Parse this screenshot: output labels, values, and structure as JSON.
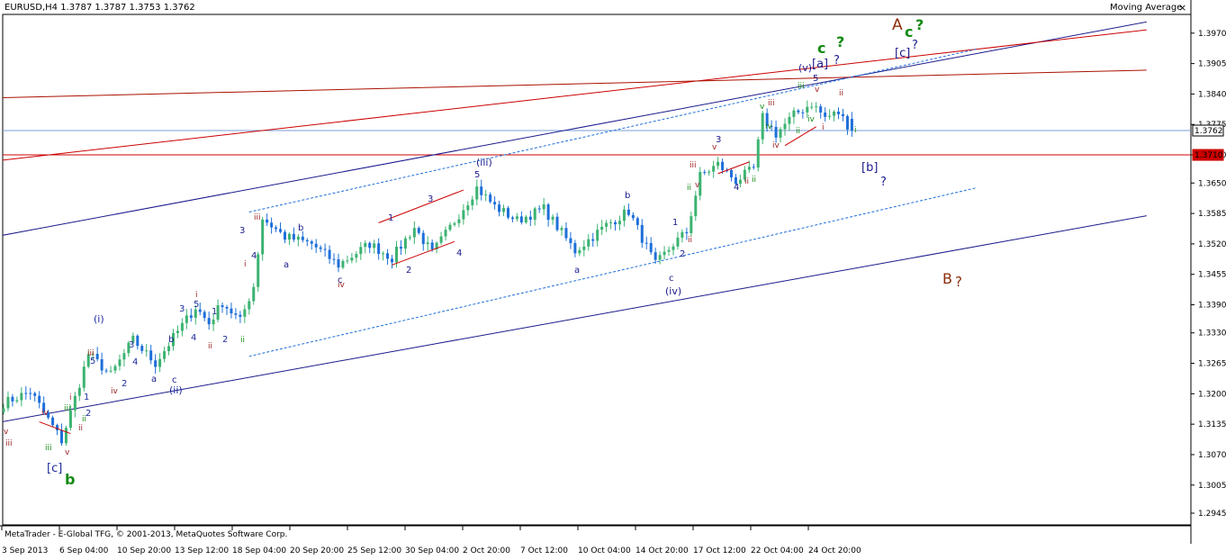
{
  "header": {
    "symbol_line": "EURUSD,H4  1.3787 1.3787 1.3753 1.3762",
    "indicator": "Moving Average",
    "close_glyph": "×"
  },
  "footer": {
    "copyright": "MetaTrader - E-Global TFG, © 2001-2013, MetaQuotes Software Corp."
  },
  "colors": {
    "bull": "#3cb371",
    "bear": "#1e6fd9",
    "navy": "#1a1a8c",
    "red": "#cc0000",
    "brown": "#8b2c0a",
    "dark_red": "#9b1b1b",
    "green": "#138a13",
    "blue_label": "#1f2d9c",
    "price_line": "#7a9cd9"
  },
  "chart_data": {
    "type": "candlestick",
    "symbol": "EURUSD",
    "timeframe": "H4",
    "last_ohlc": {
      "open": 1.3787,
      "high": 1.3787,
      "low": 1.3753,
      "close": 1.3762
    },
    "ylim": [
      1.292,
      1.401
    ],
    "y_ticks": [
      "1.3970",
      "1.3905",
      "1.3840",
      "1.3775",
      "1.3710",
      "1.3650",
      "1.3585",
      "1.3520",
      "1.3455",
      "1.3390",
      "1.3330",
      "1.3265",
      "1.3200",
      "1.3135",
      "1.3070",
      "1.3005",
      "1.2945"
    ],
    "x_ticks": [
      "3 Sep 2013",
      "6 Sep 04:00",
      "10 Sep 20:00",
      "13 Sep 12:00",
      "18 Sep 04:00",
      "20 Sep 20:00",
      "25 Sep 12:00",
      "30 Sep 04:00",
      "2 Oct 20:00",
      "7 Oct 12:00",
      "10 Oct 04:00",
      "14 Oct 20:00",
      "17 Oct 12:00",
      "22 Oct 04:00",
      "24 Oct 20:00"
    ],
    "bars": 191,
    "key_points": [
      {
        "bar": 0,
        "price": 1.318
      },
      {
        "bar": 6,
        "price": 1.3205
      },
      {
        "bar": 13,
        "price": 1.31
      },
      {
        "bar": 15,
        "price": 1.316
      },
      {
        "bar": 19,
        "price": 1.3285
      },
      {
        "bar": 24,
        "price": 1.324
      },
      {
        "bar": 29,
        "price": 1.3315
      },
      {
        "bar": 34,
        "price": 1.3265
      },
      {
        "bar": 38,
        "price": 1.332
      },
      {
        "bar": 43,
        "price": 1.3385
      },
      {
        "bar": 46,
        "price": 1.335
      },
      {
        "bar": 49,
        "price": 1.3395
      },
      {
        "bar": 53,
        "price": 1.3355
      },
      {
        "bar": 56,
        "price": 1.343
      },
      {
        "bar": 58,
        "price": 1.3575
      },
      {
        "bar": 63,
        "price": 1.3535
      },
      {
        "bar": 69,
        "price": 1.352
      },
      {
        "bar": 75,
        "price": 1.3475
      },
      {
        "bar": 82,
        "price": 1.352
      },
      {
        "bar": 87,
        "price": 1.349
      },
      {
        "bar": 92,
        "price": 1.3555
      },
      {
        "bar": 96,
        "price": 1.35
      },
      {
        "bar": 100,
        "price": 1.3555
      },
      {
        "bar": 106,
        "price": 1.364
      },
      {
        "bar": 110,
        "price": 1.36
      },
      {
        "bar": 115,
        "price": 1.357
      },
      {
        "bar": 121,
        "price": 1.3595
      },
      {
        "bar": 128,
        "price": 1.3505
      },
      {
        "bar": 135,
        "price": 1.356
      },
      {
        "bar": 140,
        "price": 1.359
      },
      {
        "bar": 146,
        "price": 1.3475
      },
      {
        "bar": 150,
        "price": 1.352
      },
      {
        "bar": 153,
        "price": 1.3545
      },
      {
        "bar": 156,
        "price": 1.3665
      },
      {
        "bar": 160,
        "price": 1.369
      },
      {
        "bar": 164,
        "price": 1.3655
      },
      {
        "bar": 168,
        "price": 1.368
      },
      {
        "bar": 170,
        "price": 1.379
      },
      {
        "bar": 173,
        "price": 1.3755
      },
      {
        "bar": 177,
        "price": 1.3795
      },
      {
        "bar": 181,
        "price": 1.382
      },
      {
        "bar": 184,
        "price": 1.379
      },
      {
        "bar": 187,
        "price": 1.38
      },
      {
        "bar": 190,
        "price": 1.3762
      }
    ],
    "horizontal_lines": [
      {
        "price": 1.3762,
        "color": "#7a9cd9",
        "label": "1.3762"
      },
      {
        "price": 1.371,
        "color": "#cc0000",
        "label": "1.3710"
      }
    ],
    "trend_lines": [
      {
        "color": "#1a1a8c",
        "style": "solid",
        "from": {
          "bar": -1,
          "price": 1.3537
        },
        "to": {
          "bar": 256,
          "price": 1.3994
        }
      },
      {
        "color": "#1a1a8c",
        "style": "solid",
        "from": {
          "bar": -1,
          "price": 1.3139
        },
        "to": {
          "bar": 256,
          "price": 1.358
        }
      },
      {
        "color": "#cc0000",
        "style": "solid",
        "from": {
          "bar": -1,
          "price": 1.3698
        },
        "to": {
          "bar": 256,
          "price": 1.3977
        }
      },
      {
        "color": "#aa1100",
        "style": "solid",
        "from": {
          "bar": -1,
          "price": 1.3832
        },
        "to": {
          "bar": 256,
          "price": 1.3891
        }
      },
      {
        "color": "#1e6fd9",
        "style": "dashed",
        "from": {
          "bar": 55,
          "price": 1.3588
        },
        "to": {
          "bar": 218,
          "price": 1.3936
        }
      },
      {
        "color": "#1e6fd9",
        "style": "dashed",
        "from": {
          "bar": 55,
          "price": 1.328
        },
        "to": {
          "bar": 218,
          "price": 1.364
        }
      }
    ],
    "channel_segments": [
      {
        "from": {
          "bar": 84,
          "price": 1.3565
        },
        "to": {
          "bar": 103,
          "price": 1.3635
        }
      },
      {
        "from": {
          "bar": 87,
          "price": 1.3475
        },
        "to": {
          "bar": 101,
          "price": 1.3525
        }
      },
      {
        "from": {
          "bar": 160,
          "price": 1.367
        },
        "to": {
          "bar": 167,
          "price": 1.3695
        }
      },
      {
        "from": {
          "bar": 175,
          "price": 1.373
        },
        "to": {
          "bar": 182,
          "price": 1.377
        }
      },
      {
        "from": {
          "bar": 8,
          "price": 1.314
        },
        "to": {
          "bar": 15,
          "price": 1.3115
        }
      }
    ],
    "wave_labels": [
      {
        "t": "[c]",
        "x": 52,
        "y": 524,
        "c": "blue_label",
        "s": 13
      },
      {
        "t": "b",
        "x": 72,
        "y": 538,
        "c": "green",
        "s": 16,
        "b": 1
      },
      {
        "t": "iii",
        "x": 6,
        "y": 495,
        "c": "dark_red",
        "s": 9
      },
      {
        "t": "v",
        "x": 4,
        "y": 482,
        "c": "dark_red",
        "s": 9
      },
      {
        "t": "iv",
        "x": 46,
        "y": 461,
        "c": "dark_red",
        "s": 9
      },
      {
        "t": "iii",
        "x": 50,
        "y": 500,
        "c": "green",
        "s": 9
      },
      {
        "t": "i",
        "x": 77,
        "y": 444,
        "c": "dark_red",
        "s": 9
      },
      {
        "t": "v",
        "x": 72,
        "y": 505,
        "c": "dark_red",
        "s": 9
      },
      {
        "t": "iii",
        "x": 71,
        "y": 456,
        "c": "green",
        "s": 9
      },
      {
        "t": "ii",
        "x": 87,
        "y": 478,
        "c": "dark_red",
        "s": 9
      },
      {
        "t": "1",
        "x": 93,
        "y": 444,
        "c": "blue_label",
        "s": 10
      },
      {
        "t": "2",
        "x": 95,
        "y": 462,
        "c": "blue_label",
        "s": 10
      },
      {
        "t": "ii",
        "x": 91,
        "y": 468,
        "c": "green",
        "s": 9
      },
      {
        "t": "iii",
        "x": 97,
        "y": 395,
        "c": "dark_red",
        "s": 9
      },
      {
        "t": "5",
        "x": 100,
        "y": 404,
        "c": "blue_label",
        "s": 10
      },
      {
        "t": "(i)",
        "x": 104,
        "y": 358,
        "c": "blue_label",
        "s": 11
      },
      {
        "t": "iv",
        "x": 123,
        "y": 437,
        "c": "dark_red",
        "s": 9
      },
      {
        "t": "2",
        "x": 135,
        "y": 429,
        "c": "blue_label",
        "s": 10
      },
      {
        "t": "3",
        "x": 143,
        "y": 386,
        "c": "blue_label",
        "s": 10
      },
      {
        "t": "4",
        "x": 147,
        "y": 405,
        "c": "blue_label",
        "s": 10
      },
      {
        "t": "a",
        "x": 168,
        "y": 424,
        "c": "navy",
        "s": 10
      },
      {
        "t": "b",
        "x": 187,
        "y": 380,
        "c": "navy",
        "s": 10
      },
      {
        "t": "c",
        "x": 191,
        "y": 425,
        "c": "navy",
        "s": 10
      },
      {
        "t": "(ii)",
        "x": 188,
        "y": 437,
        "c": "blue_label",
        "s": 11
      },
      {
        "t": "3",
        "x": 199,
        "y": 346,
        "c": "blue_label",
        "s": 10
      },
      {
        "t": "5",
        "x": 215,
        "y": 341,
        "c": "blue_label",
        "s": 10
      },
      {
        "t": "i",
        "x": 217,
        "y": 330,
        "c": "dark_red",
        "s": 9
      },
      {
        "t": "4",
        "x": 212,
        "y": 378,
        "c": "blue_label",
        "s": 10
      },
      {
        "t": "1",
        "x": 235,
        "y": 349,
        "c": "blue_label",
        "s": 10
      },
      {
        "t": "ii",
        "x": 231,
        "y": 387,
        "c": "dark_red",
        "s": 9
      },
      {
        "t": "2",
        "x": 247,
        "y": 380,
        "c": "blue_label",
        "s": 10
      },
      {
        "t": "ii",
        "x": 267,
        "y": 380,
        "c": "green",
        "s": 9
      },
      {
        "t": "3",
        "x": 266,
        "y": 259,
        "c": "navy",
        "s": 10
      },
      {
        "t": "iii",
        "x": 282,
        "y": 244,
        "c": "dark_red",
        "s": 9
      },
      {
        "t": "4",
        "x": 279,
        "y": 287,
        "c": "navy",
        "s": 10
      },
      {
        "t": "i",
        "x": 271,
        "y": 296,
        "c": "dark_red",
        "s": 9
      },
      {
        "t": "a",
        "x": 315,
        "y": 297,
        "c": "navy",
        "s": 10
      },
      {
        "t": "b",
        "x": 331,
        "y": 256,
        "c": "navy",
        "s": 10
      },
      {
        "t": "c",
        "x": 375,
        "y": 314,
        "c": "navy",
        "s": 10
      },
      {
        "t": "iv",
        "x": 375,
        "y": 319,
        "c": "dark_red",
        "s": 9
      },
      {
        "t": "1",
        "x": 431,
        "y": 245,
        "c": "navy",
        "s": 10
      },
      {
        "t": "2",
        "x": 451,
        "y": 303,
        "c": "navy",
        "s": 10
      },
      {
        "t": "3",
        "x": 475,
        "y": 224,
        "c": "navy",
        "s": 10
      },
      {
        "t": "4",
        "x": 507,
        "y": 284,
        "c": "navy",
        "s": 10
      },
      {
        "t": "5",
        "x": 527,
        "y": 197,
        "c": "navy",
        "s": 10
      },
      {
        "t": "(iii)",
        "x": 529,
        "y": 184,
        "c": "navy",
        "s": 11
      },
      {
        "t": "a",
        "x": 638,
        "y": 303,
        "c": "navy",
        "s": 10
      },
      {
        "t": "b",
        "x": 694,
        "y": 220,
        "c": "navy",
        "s": 10
      },
      {
        "t": "c",
        "x": 743,
        "y": 312,
        "c": "navy",
        "s": 10
      },
      {
        "t": "(iv)",
        "x": 739,
        "y": 327,
        "c": "navy",
        "s": 11
      },
      {
        "t": "1",
        "x": 747,
        "y": 250,
        "c": "navy",
        "s": 10
      },
      {
        "t": "2",
        "x": 755,
        "y": 285,
        "c": "navy",
        "s": 10
      },
      {
        "t": "ii",
        "x": 764,
        "y": 269,
        "c": "dark_red",
        "s": 9
      },
      {
        "t": "ii",
        "x": 763,
        "y": 211,
        "c": "green",
        "s": 9
      },
      {
        "t": "iii",
        "x": 766,
        "y": 186,
        "c": "dark_red",
        "s": 9
      },
      {
        "t": "v",
        "x": 772,
        "y": 208,
        "c": "dark_red",
        "s": 9
      },
      {
        "t": "v",
        "x": 791,
        "y": 166,
        "c": "dark_red",
        "s": 9
      },
      {
        "t": "3",
        "x": 795,
        "y": 158,
        "c": "navy",
        "s": 10
      },
      {
        "t": "4",
        "x": 815,
        "y": 211,
        "c": "navy",
        "s": 10
      },
      {
        "t": "ii",
        "x": 827,
        "y": 204,
        "c": "dark_red",
        "s": 9
      },
      {
        "t": "ii",
        "x": 835,
        "y": 202,
        "c": "green",
        "s": 9
      },
      {
        "t": "iii",
        "x": 853,
        "y": 117,
        "c": "dark_red",
        "s": 9
      },
      {
        "t": "v",
        "x": 844,
        "y": 121,
        "c": "green",
        "s": 9
      },
      {
        "t": "iv",
        "x": 850,
        "y": 143,
        "c": "green",
        "s": 9
      },
      {
        "t": "iv",
        "x": 858,
        "y": 164,
        "c": "dark_red",
        "s": 9
      },
      {
        "t": "ii",
        "x": 884,
        "y": 148,
        "c": "green",
        "s": 9
      },
      {
        "t": "iii",
        "x": 886,
        "y": 98,
        "c": "green",
        "s": 9
      },
      {
        "t": "5",
        "x": 903,
        "y": 90,
        "c": "navy",
        "s": 10
      },
      {
        "t": "iv",
        "x": 897,
        "y": 135,
        "c": "green",
        "s": 9
      },
      {
        "t": "v",
        "x": 905,
        "y": 102,
        "c": "dark_red",
        "s": 9
      },
      {
        "t": "i",
        "x": 913,
        "y": 144,
        "c": "dark_red",
        "s": 9
      },
      {
        "t": "ii",
        "x": 932,
        "y": 106,
        "c": "dark_red",
        "s": 9
      },
      {
        "t": "i",
        "x": 949,
        "y": 147,
        "c": "green",
        "s": 9
      },
      {
        "t": "(v)",
        "x": 887,
        "y": 79,
        "c": "navy",
        "s": 11
      },
      {
        "t": "[a]",
        "x": 902,
        "y": 75,
        "c": "navy",
        "s": 13
      },
      {
        "t": "?",
        "x": 926,
        "y": 71,
        "c": "navy",
        "s": 13
      },
      {
        "t": "c",
        "x": 908,
        "y": 59,
        "c": "green",
        "s": 16,
        "b": 1
      },
      {
        "t": "?",
        "x": 929,
        "y": 52,
        "c": "green",
        "s": 16,
        "b": 1
      },
      {
        "t": "[c]",
        "x": 994,
        "y": 63,
        "c": "navy",
        "s": 13
      },
      {
        "t": "?",
        "x": 1013,
        "y": 54,
        "c": "navy",
        "s": 13
      },
      {
        "t": "A",
        "x": 991,
        "y": 33,
        "c": "brown",
        "s": 17
      },
      {
        "t": "c",
        "x": 1005,
        "y": 41,
        "c": "green",
        "s": 16,
        "b": 1
      },
      {
        "t": "?",
        "x": 1017,
        "y": 33,
        "c": "green",
        "s": 16,
        "b": 1
      },
      {
        "t": "[b]",
        "x": 957,
        "y": 190,
        "c": "navy",
        "s": 13
      },
      {
        "t": "?",
        "x": 978,
        "y": 206,
        "c": "navy",
        "s": 13
      },
      {
        "t": "B",
        "x": 1047,
        "y": 315,
        "c": "brown",
        "s": 16
      },
      {
        "t": "?",
        "x": 1061,
        "y": 318,
        "c": "brown",
        "s": 15
      }
    ]
  }
}
